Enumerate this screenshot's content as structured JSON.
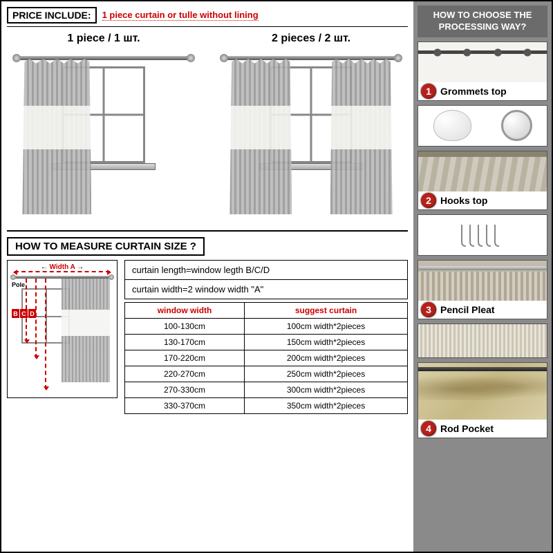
{
  "left": {
    "price_label": "PRICE INCLUDE:",
    "price_text": "1 piece curtain or tulle without lining",
    "piece1_label": "1 piece  /  1 шт.",
    "piece2_label": "2 pieces  /  2 шт."
  },
  "measure": {
    "title": "HOW TO MEASURE  CURTAIN  SIZE ?",
    "width_label": "Width A",
    "pole_label": "Pole",
    "b": "B",
    "c": "C",
    "d": "D",
    "formula1": "curtain length=window legth B/C/D",
    "formula2": "curtain width=2 window width  \"A\"",
    "table": {
      "header_width": "window width",
      "header_suggest": "suggest curtain",
      "rows": [
        [
          "100-130cm",
          "100cm width*2pieces"
        ],
        [
          "130-170cm",
          "150cm width*2pieces"
        ],
        [
          "170-220cm",
          "200cm width*2pieces"
        ],
        [
          "220-270cm",
          "250cm width*2pieces"
        ],
        [
          "270-330cm",
          "300cm width*2pieces"
        ],
        [
          "330-370cm",
          "350cm width*2pieces"
        ]
      ]
    }
  },
  "right": {
    "header": "HOW TO CHOOSE THE PROCESSING WAY?",
    "options": [
      {
        "num": "1",
        "name": "Grommets top"
      },
      {
        "num": "2",
        "name": "Hooks top"
      },
      {
        "num": "3",
        "name": "Pencil Pleat"
      },
      {
        "num": "4",
        "name": "Rod Pocket"
      }
    ]
  },
  "colors": {
    "accent_red": "#b8211a",
    "grey_panel": "#8a8a8a"
  }
}
